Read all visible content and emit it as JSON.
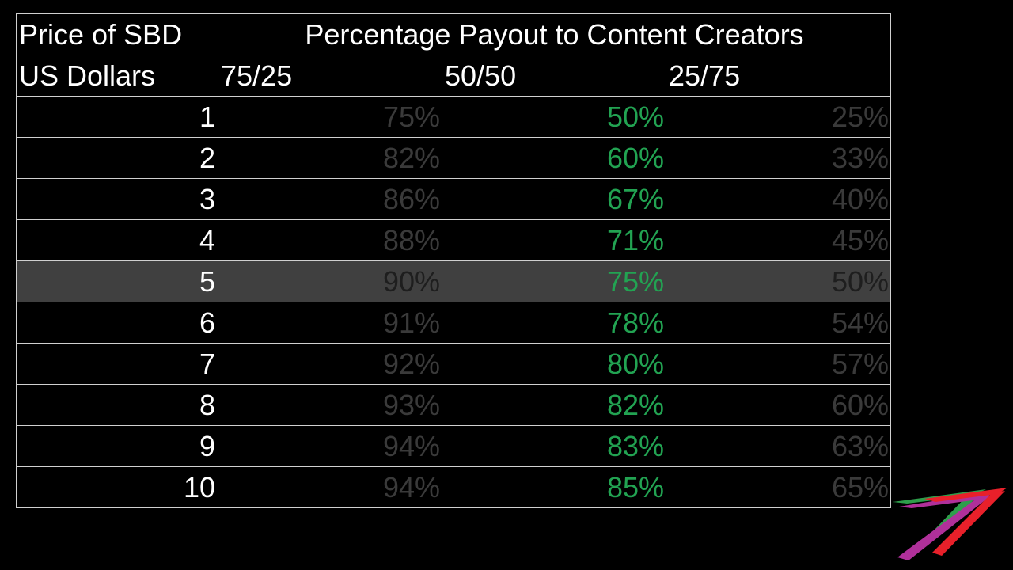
{
  "table": {
    "header": {
      "price_label": "Price of SBD",
      "payout_title": "Percentage Payout to Content Creators",
      "unit_label": "US Dollars",
      "splits": [
        "75/25",
        "50/50",
        "25/75"
      ]
    },
    "highlight_price": "5",
    "rows": [
      {
        "price": "1",
        "values": [
          "75%",
          "50%",
          "25%"
        ]
      },
      {
        "price": "2",
        "values": [
          "82%",
          "60%",
          "33%"
        ]
      },
      {
        "price": "3",
        "values": [
          "86%",
          "67%",
          "40%"
        ]
      },
      {
        "price": "4",
        "values": [
          "88%",
          "71%",
          "45%"
        ]
      },
      {
        "price": "5",
        "values": [
          "90%",
          "75%",
          "50%"
        ]
      },
      {
        "price": "6",
        "values": [
          "91%",
          "78%",
          "54%"
        ]
      },
      {
        "price": "7",
        "values": [
          "92%",
          "80%",
          "57%"
        ]
      },
      {
        "price": "8",
        "values": [
          "93%",
          "82%",
          "60%"
        ]
      },
      {
        "price": "9",
        "values": [
          "94%",
          "83%",
          "63%"
        ]
      },
      {
        "price": "10",
        "values": [
          "94%",
          "85%",
          "65%"
        ]
      }
    ]
  },
  "chart_data": {
    "type": "table",
    "title": "Percentage Payout to Content Creators",
    "columns": [
      "Price of SBD US Dollars",
      "75/25",
      "50/50",
      "25/75"
    ],
    "x": [
      1,
      2,
      3,
      4,
      5,
      6,
      7,
      8,
      9,
      10
    ],
    "series": [
      {
        "name": "75/25",
        "values": [
          75,
          82,
          86,
          88,
          90,
          91,
          92,
          93,
          94,
          94
        ]
      },
      {
        "name": "50/50",
        "values": [
          50,
          60,
          67,
          71,
          75,
          78,
          80,
          82,
          83,
          85
        ]
      },
      {
        "name": "25/75",
        "values": [
          25,
          33,
          40,
          45,
          50,
          54,
          57,
          60,
          63,
          65
        ]
      }
    ]
  },
  "colors": {
    "background": "#000000",
    "text": "#ffffff",
    "emphasis_series": "#22a352",
    "dimmed_series": "#3a3a3a",
    "highlight_row": "#404040",
    "grid": "#d0d0d0",
    "logo": [
      "#2e9e4b",
      "#b0309a",
      "#e8202a"
    ]
  },
  "logo": {
    "name": "stylized-seven-logo"
  }
}
